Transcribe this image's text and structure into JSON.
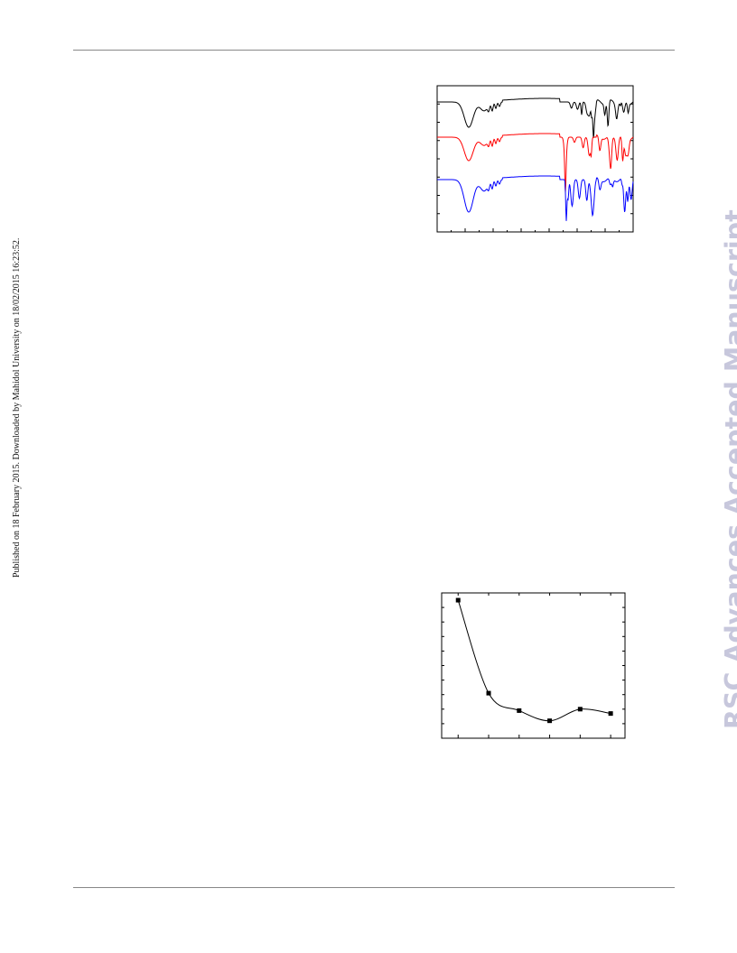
{
  "side_note": "Published on 18 February 2015. Downloaded by Mahidol University on 18/02/2015 16:23:52.",
  "watermark": {
    "text": "RSC Advances Accepted Manuscript",
    "color": "#c7c7dc"
  },
  "chart_data": [
    {
      "type": "line",
      "title": "",
      "xlabel": "",
      "ylabel": "",
      "grid": false,
      "legend": "none",
      "series": [
        {
          "color": "#000000"
        },
        {
          "color": "#ff0000"
        },
        {
          "color": "#0000ff"
        }
      ]
    },
    {
      "type": "scatter",
      "title": "",
      "xlabel": "",
      "ylabel": "",
      "grid": false,
      "legend": "none",
      "x": [
        1,
        2,
        3,
        4,
        5,
        6
      ],
      "values": [
        95,
        31,
        19,
        12,
        20,
        17
      ],
      "ylim": [
        0,
        100
      ],
      "fit": "smooth-curve"
    }
  ]
}
